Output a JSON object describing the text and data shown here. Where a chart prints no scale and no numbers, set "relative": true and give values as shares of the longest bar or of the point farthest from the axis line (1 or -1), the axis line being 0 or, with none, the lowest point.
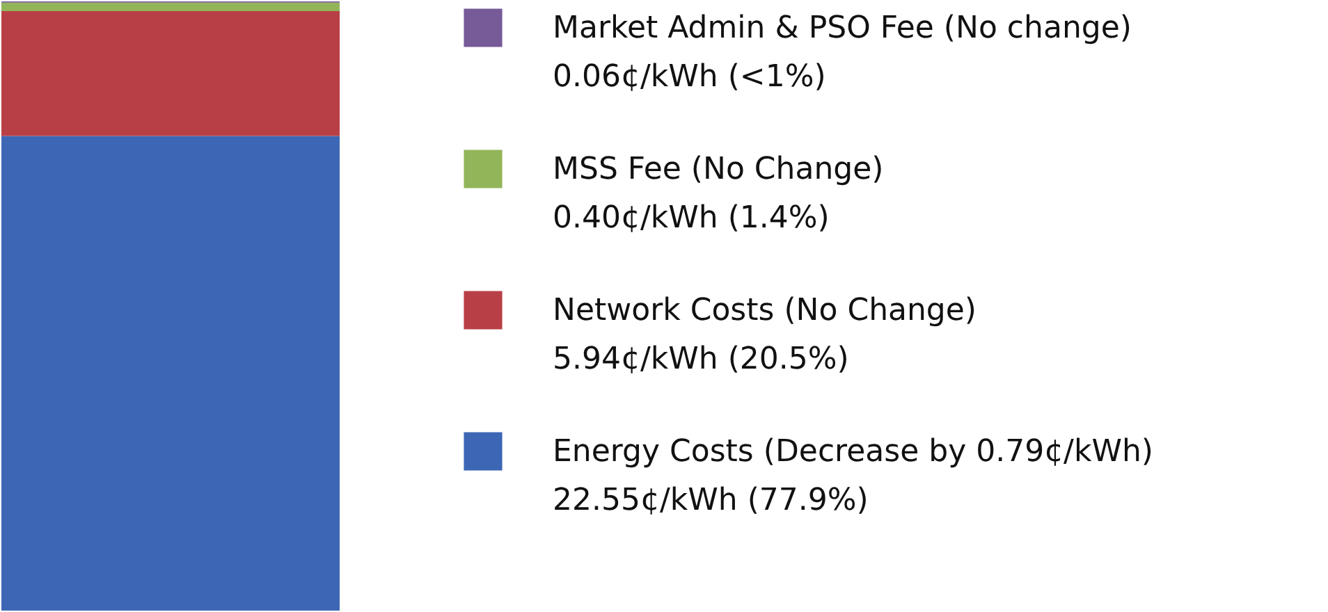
{
  "chart_data": {
    "type": "bar",
    "stacked": true,
    "relative": true,
    "legend": "right",
    "categories": [
      null
    ],
    "series": [
      {
        "name": "Energy Costs (Decrease by 0.79¢/kWh)\n22.55¢/kWh (77.9%)",
        "color": "#3d67b5",
        "values": [
          0.779
        ]
      },
      {
        "name": "Network Costs (No Change)\n5.94¢/kWh (20.5%)",
        "color": "#b83f46",
        "values": [
          0.205
        ]
      },
      {
        "name": "MSS Fee (No Change)\n0.40¢/kWh (1.4%)",
        "color": "#93b55a",
        "values": [
          0.014
        ]
      },
      {
        "name": "Market Admin & PSO Fee (No change)\n0.06¢/kWh (<1%)",
        "color": "#775a98",
        "values": [
          0.002
        ]
      }
    ]
  }
}
